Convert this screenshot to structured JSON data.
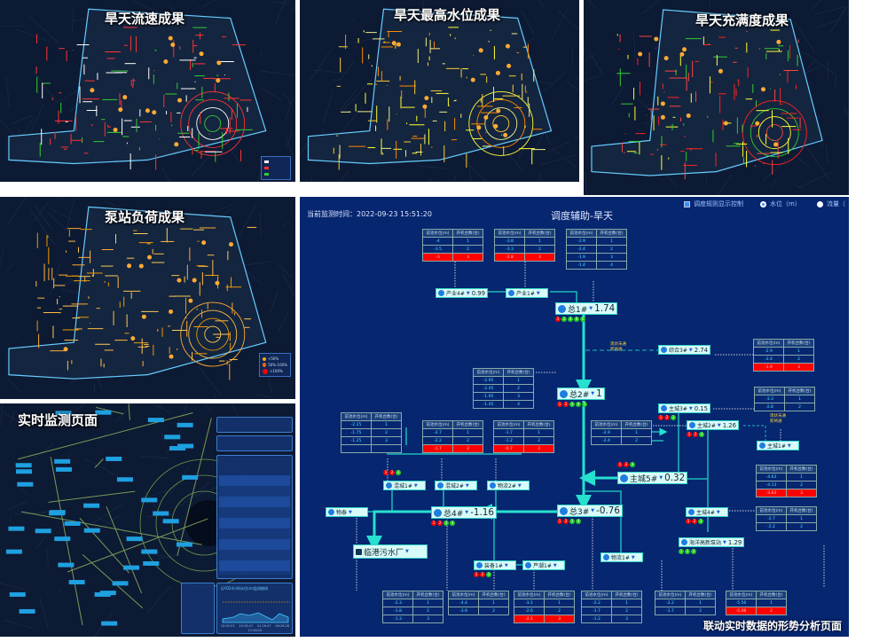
{
  "panels": {
    "flow_velocity": {
      "title": "旱天流速成果"
    },
    "max_water_level": {
      "title": "旱天最高水位成果"
    },
    "fullness": {
      "title": "旱天充满度成果"
    },
    "pump_load": {
      "title": "泵站负荷成果",
      "legend": [
        "<50%",
        "50%-100%",
        ">100%"
      ]
    },
    "realtime": {
      "title": "实时监测页面",
      "trend_label": "LJYD24小时水位(m)监测曲线",
      "times": [
        "15:52:03",
        "20:26:47",
        "01:26:47",
        "06:26:26",
        "11:46:20"
      ]
    }
  },
  "diagram": {
    "monitor_time": "当前监测时间：2022-09-23 15:51:20",
    "title": "调度辅助-旱天",
    "rule_display_label": "调度规则显示控制",
    "radio_water_level": "水位（m）",
    "radio_flow": "流量（",
    "note_text": [
      "现状未通",
      "新将通"
    ],
    "table_headers": [
      "前池水位(m)",
      "开机台数(台)"
    ],
    "caption": "联动实时数据的形势分析页面",
    "colors": {
      "trunk": "#26e0d0",
      "alarm": "#ff0000",
      "ok": "#22cc22",
      "bg": "#062670"
    },
    "nodes": {
      "cy4": {
        "name": "产业4#",
        "value": "0.99"
      },
      "cy1": {
        "name": "产业1#",
        "value": ""
      },
      "z1": {
        "name": "总1#",
        "value": "1.74"
      },
      "zh3": {
        "name": "综合3#",
        "value": "2.74"
      },
      "z2": {
        "name": "总2#",
        "value": "1"
      },
      "zc3": {
        "name": "主城3#",
        "value": "0.15"
      },
      "zc2": {
        "name": "主城2#",
        "value": "1.26"
      },
      "zc1": {
        "name": "主城1#",
        "value": ""
      },
      "zc5": {
        "name": "主城5#",
        "value": "0.32"
      },
      "hc1": {
        "name": "混城1#",
        "value": ""
      },
      "hc2": {
        "name": "混城2#",
        "value": ""
      },
      "wl2": {
        "name": "物流2#",
        "value": ""
      },
      "wt": {
        "name": "物泰",
        "value": ""
      },
      "z4": {
        "name": "总4#",
        "value": "-1.16"
      },
      "z3": {
        "name": "总3#",
        "value": "-0.76"
      },
      "zc4": {
        "name": "主城4#",
        "value": ""
      },
      "hy": {
        "name": "海洋高新泵站",
        "value": "1.29"
      },
      "wl1": {
        "name": "物流1#",
        "value": ""
      },
      "lg": {
        "name": "临港污水厂",
        "value": ""
      },
      "zb1": {
        "name": "装备1#",
        "value": ""
      },
      "lc1": {
        "name": "芦潮1#",
        "value": ""
      }
    },
    "status_dots": {
      "z1": [
        "r",
        "g",
        "g",
        "g",
        "g"
      ],
      "z2": [
        "r",
        "r",
        "g",
        "g",
        "g"
      ],
      "zc3": [
        "r",
        "r",
        "g"
      ],
      "zc2": [
        "r",
        "r",
        "g"
      ],
      "zc5": [
        "r",
        "r",
        "g"
      ],
      "hc1": [
        "r",
        "r",
        "g"
      ],
      "z4": [
        "r",
        "r",
        "g",
        "g"
      ],
      "z3": [
        "r",
        "r",
        "g",
        "g"
      ],
      "zc4": [
        "r",
        "r",
        "g"
      ],
      "hy": [
        "g",
        "g",
        "g"
      ],
      "zb1": [
        "r",
        "r",
        "g"
      ]
    },
    "tables": [
      {
        "id": "t1",
        "rows": [
          [
            "-4",
            "1"
          ],
          [
            "-3.5",
            "2"
          ],
          [
            "-3",
            "3"
          ]
        ],
        "alarm_row": 2
      },
      {
        "id": "t2",
        "rows": [
          [
            "-3.8",
            "1"
          ],
          [
            "-3.3",
            "2"
          ],
          [
            "-2.8",
            "3"
          ]
        ],
        "alarm_row": 2
      },
      {
        "id": "t3",
        "rows": [
          [
            "-2.9",
            "1"
          ],
          [
            "-2.4",
            "2"
          ],
          [
            "-1.9",
            "3"
          ],
          [
            "-1.4",
            "4"
          ]
        ],
        "alarm_row": null
      },
      {
        "id": "t4",
        "rows": [
          [
            "-2.9",
            "1"
          ],
          [
            "-2.4",
            "2"
          ],
          [
            "-1.9",
            "3"
          ]
        ],
        "alarm_row": 2
      },
      {
        "id": "t5",
        "rows": [
          [
            "-2.95",
            "1"
          ],
          [
            "-2.45",
            "2"
          ],
          [
            "-1.95",
            "3"
          ],
          [
            "-1.45",
            "4"
          ]
        ],
        "alarm_row": null
      },
      {
        "id": "t6",
        "rows": [
          [
            "-3.3",
            "1"
          ],
          [
            "-2.8",
            "2"
          ]
        ],
        "alarm_row": null
      },
      {
        "id": "t7",
        "rows": [
          [
            "-2.9",
            "1"
          ],
          [
            "-2.4",
            "2"
          ]
        ],
        "alarm_row": null
      },
      {
        "id": "t8",
        "rows": [
          [
            "-2.25",
            "1"
          ],
          [
            "-1.75",
            "2"
          ],
          [
            "-1.25",
            "3"
          ],
          [
            "",
            ""
          ]
        ],
        "alarm_row": null
      },
      {
        "id": "t9",
        "rows": [
          [
            "-2.7",
            "1"
          ],
          [
            "-2.2",
            "2"
          ],
          [
            "-1.7",
            "3"
          ]
        ],
        "alarm_row": 2
      },
      {
        "id": "t10",
        "rows": [
          [
            "-1.7",
            "1"
          ],
          [
            "-1.2",
            "2"
          ],
          [
            "-0.7",
            "3"
          ]
        ],
        "alarm_row": 2
      },
      {
        "id": "t11",
        "rows": [
          [
            "-4.63",
            "1"
          ],
          [
            "-4.13",
            "2"
          ],
          [
            "-3.63",
            "3"
          ]
        ],
        "alarm_row": 2
      },
      {
        "id": "t12",
        "rows": [
          [
            "-2.7",
            "1"
          ],
          [
            "-2.2",
            "2"
          ]
        ],
        "alarm_row": null
      },
      {
        "id": "t13",
        "rows": [
          [
            "-2.3",
            "1"
          ],
          [
            "-1.8",
            "2"
          ],
          [
            "-1.3",
            "3"
          ]
        ],
        "alarm_row": null
      },
      {
        "id": "t14",
        "rows": [
          [
            "-4.4",
            "1"
          ],
          [
            "-3.9",
            "2"
          ]
        ],
        "alarm_row": null
      },
      {
        "id": "t15",
        "rows": [
          [
            "-3.1",
            "1"
          ],
          [
            "-2.6",
            "2"
          ],
          [
            "-2.1",
            "3"
          ]
        ],
        "alarm_row": 2
      },
      {
        "id": "t16",
        "rows": [
          [
            "-2.2",
            "1"
          ],
          [
            "-1.7",
            "2"
          ],
          [
            "-1.2",
            "3"
          ]
        ],
        "alarm_row": null
      },
      {
        "id": "t17",
        "rows": [
          [
            "-2.2",
            "1"
          ],
          [
            "-1.7",
            "2"
          ]
        ],
        "alarm_row": null
      },
      {
        "id": "t18",
        "rows": [
          [
            "-5.56",
            "1"
          ],
          [
            "-5.06",
            "2"
          ]
        ],
        "alarm_row": 1
      }
    ]
  }
}
